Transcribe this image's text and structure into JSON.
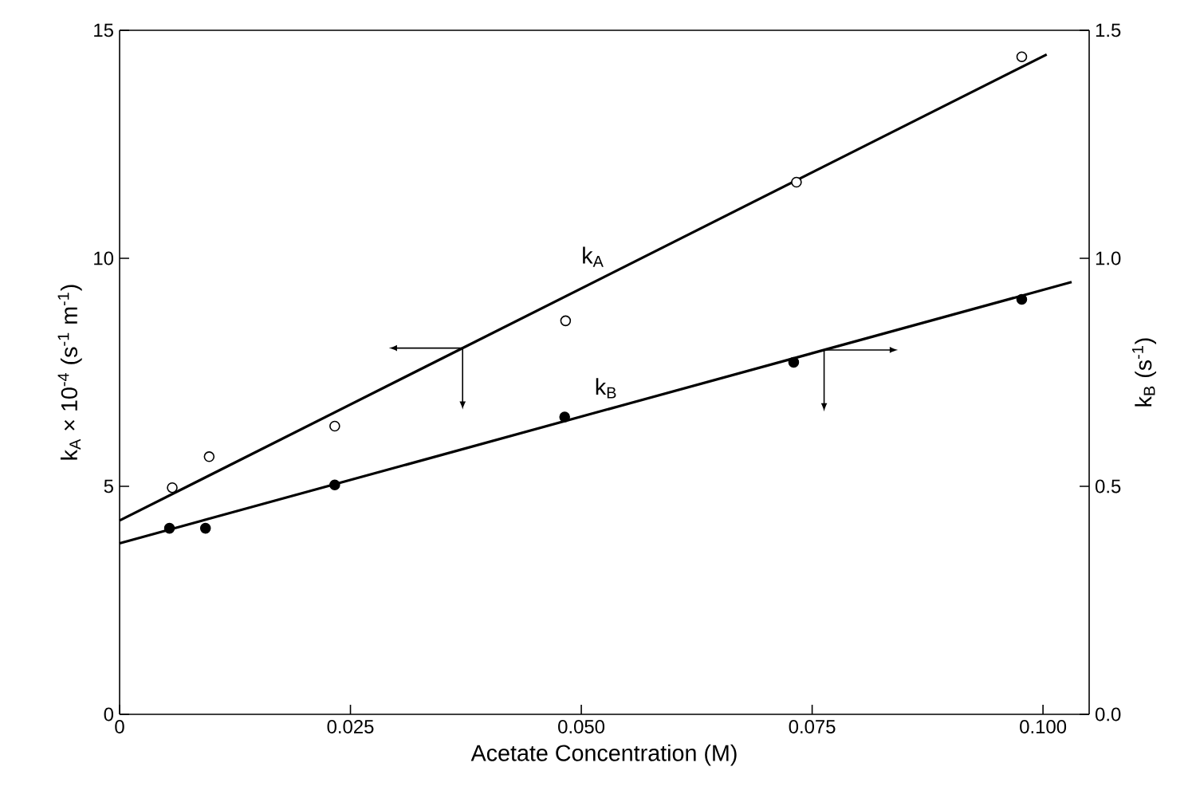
{
  "chart_data": {
    "type": "scatter",
    "xlabel": "Acetate Concentration (M)",
    "ylabel": "k$_{A}$ × 10$^{-4}$ (s$^{-1}$ m$^{-1}$)",
    "y2label": "k$_{B}$ (s$^{-1}$)",
    "xlim": [
      0,
      0.105
    ],
    "ylim": [
      0,
      15
    ],
    "y2lim": [
      0,
      1.5
    ],
    "xticks": [
      0,
      {
        "value": 0.025,
        "label": "0.025"
      },
      {
        "value": 0.05,
        "label": "0.050"
      },
      {
        "value": 0.075,
        "label": "0.075"
      },
      {
        "value": 0.1,
        "label": "0.100"
      }
    ],
    "yticks": [
      0,
      5,
      10,
      15
    ],
    "y2ticks": [
      {
        "value": 0,
        "label": "0.0"
      },
      {
        "value": 0.5,
        "label": "0.5"
      },
      {
        "value": 1,
        "label": "1.0"
      },
      {
        "value": 1.5,
        "label": "1.5"
      }
    ],
    "grid": false,
    "series": [
      {
        "color": "#000000",
        "marker": "circle",
        "x": [
          0.0057,
          0.0097,
          0.0233,
          0.0483,
          0.0733,
          0.0977
        ],
        "values": [
          4.97,
          5.65,
          6.32,
          8.63,
          11.67,
          14.42
        ]
      },
      {
        "type": "line",
        "name": "k$_{A}$",
        "color": "#000000",
        "marker": "none",
        "line_style": "solid",
        "x": [
          0,
          0.1004
        ],
        "values": [
          4.25,
          14.47
        ]
      },
      {
        "axis": "y2",
        "color": "#000000",
        "marker": "circle",
        "x": [
          0.0054,
          0.0093,
          0.0233,
          0.0482,
          0.073,
          0.0977
        ],
        "values": [
          0.408,
          0.408,
          0.503,
          0.652,
          0.772,
          0.91
        ]
      },
      {
        "type": "line",
        "axis": "y2",
        "name": "k$_{B}$",
        "color": "#000000",
        "marker": "none",
        "line_style": "solid",
        "x": [
          0,
          0.1031
        ],
        "values": [
          0.375,
          0.948
        ]
      }
    ]
  }
}
